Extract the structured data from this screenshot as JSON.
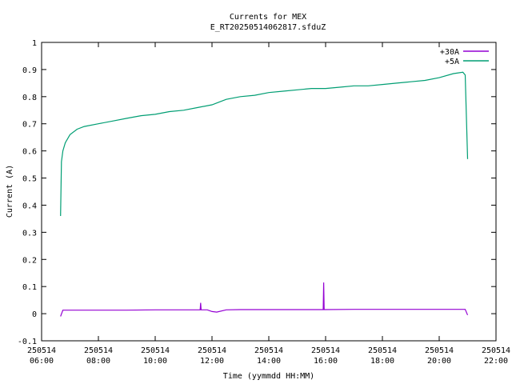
{
  "chart_data": {
    "type": "line",
    "title": "Currents for MEX",
    "subtitle": "E_RT20250514062817.sfduZ",
    "xlabel": "Time (yymmdd HH:MM)",
    "ylabel": "Current (A)",
    "xlim": [
      "2025-05-14 06:00",
      "2025-05-14 22:00"
    ],
    "ylim": [
      -0.1,
      1.0
    ],
    "x_ticks": [
      {
        "date": "250514",
        "time": "06:00"
      },
      {
        "date": "250514",
        "time": "08:00"
      },
      {
        "date": "250514",
        "time": "10:00"
      },
      {
        "date": "250514",
        "time": "12:00"
      },
      {
        "date": "250514",
        "time": "14:00"
      },
      {
        "date": "250514",
        "time": "16:00"
      },
      {
        "date": "250514",
        "time": "18:00"
      },
      {
        "date": "250514",
        "time": "20:00"
      },
      {
        "date": "250514",
        "time": "22:00"
      }
    ],
    "y_ticks": [
      "-0.1",
      "0",
      "0.1",
      "0.2",
      "0.3",
      "0.4",
      "0.5",
      "0.6",
      "0.7",
      "0.8",
      "0.9",
      "1"
    ],
    "grid": false,
    "legend_position": "top-right",
    "series": [
      {
        "name": "+30A",
        "color": "#9400d3",
        "x": [
          "2025-05-14 06:40",
          "2025-05-14 06:45",
          "2025-05-14 07:00",
          "2025-05-14 08:00",
          "2025-05-14 09:00",
          "2025-05-14 10:00",
          "2025-05-14 11:00",
          "2025-05-14 11:35",
          "2025-05-14 11:36",
          "2025-05-14 11:37",
          "2025-05-14 11:50",
          "2025-05-14 12:00",
          "2025-05-14 12:10",
          "2025-05-14 12:30",
          "2025-05-14 13:00",
          "2025-05-14 14:00",
          "2025-05-14 15:00",
          "2025-05-14 15:55",
          "2025-05-14 15:56",
          "2025-05-14 15:57",
          "2025-05-14 17:00",
          "2025-05-14 18:00",
          "2025-05-14 19:00",
          "2025-05-14 20:00",
          "2025-05-14 20:50",
          "2025-05-14 20:55",
          "2025-05-14 21:00"
        ],
        "values": [
          -0.01,
          0.013,
          0.013,
          0.013,
          0.013,
          0.014,
          0.014,
          0.014,
          0.04,
          0.014,
          0.014,
          0.008,
          0.006,
          0.014,
          0.015,
          0.015,
          0.015,
          0.015,
          0.115,
          0.015,
          0.016,
          0.016,
          0.016,
          0.016,
          0.016,
          0.016,
          -0.005
        ]
      },
      {
        "name": "+5A",
        "color": "#009e73",
        "x": [
          "2025-05-14 06:40",
          "2025-05-14 06:42",
          "2025-05-14 06:45",
          "2025-05-14 06:50",
          "2025-05-14 07:00",
          "2025-05-14 07:15",
          "2025-05-14 07:30",
          "2025-05-14 08:00",
          "2025-05-14 08:30",
          "2025-05-14 09:00",
          "2025-05-14 09:30",
          "2025-05-14 10:00",
          "2025-05-14 10:30",
          "2025-05-14 11:00",
          "2025-05-14 11:30",
          "2025-05-14 12:00",
          "2025-05-14 12:30",
          "2025-05-14 13:00",
          "2025-05-14 13:30",
          "2025-05-14 14:00",
          "2025-05-14 14:30",
          "2025-05-14 15:00",
          "2025-05-14 15:30",
          "2025-05-14 16:00",
          "2025-05-14 16:30",
          "2025-05-14 17:00",
          "2025-05-14 17:30",
          "2025-05-14 18:00",
          "2025-05-14 18:30",
          "2025-05-14 19:00",
          "2025-05-14 19:30",
          "2025-05-14 20:00",
          "2025-05-14 20:30",
          "2025-05-14 20:50",
          "2025-05-14 20:55",
          "2025-05-14 21:00"
        ],
        "values": [
          0.36,
          0.56,
          0.6,
          0.63,
          0.66,
          0.68,
          0.69,
          0.7,
          0.71,
          0.72,
          0.73,
          0.735,
          0.745,
          0.75,
          0.76,
          0.77,
          0.79,
          0.8,
          0.805,
          0.815,
          0.82,
          0.825,
          0.83,
          0.83,
          0.835,
          0.84,
          0.84,
          0.845,
          0.85,
          0.855,
          0.86,
          0.87,
          0.885,
          0.89,
          0.88,
          0.57
        ]
      }
    ]
  }
}
